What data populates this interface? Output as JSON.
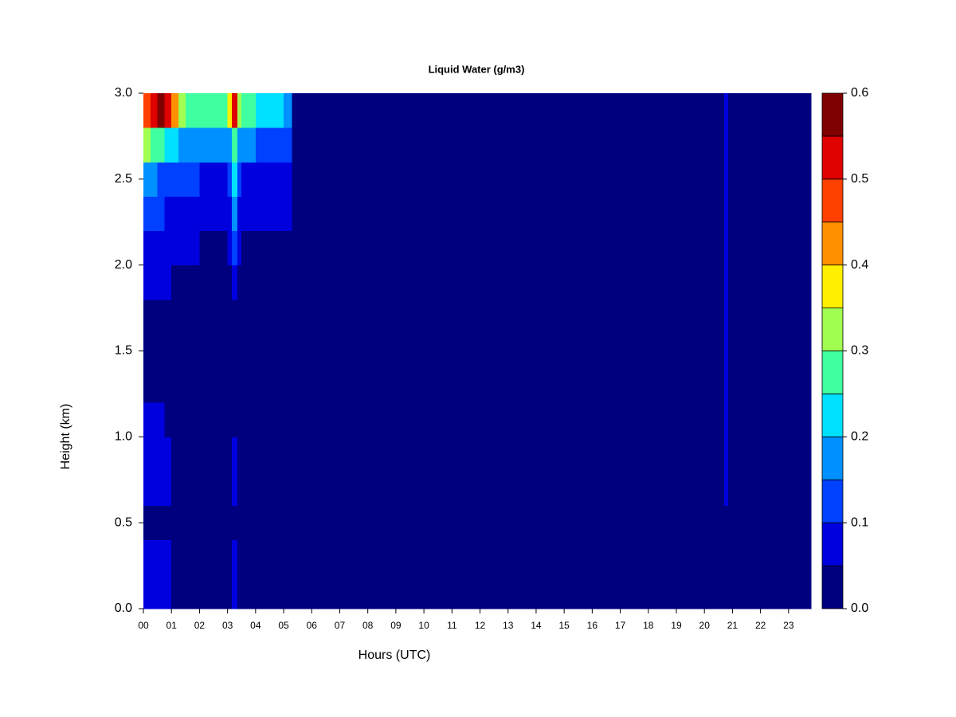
{
  "chart_data": {
    "type": "heatmap",
    "title": "Liquid Water (g/m3)",
    "xlabel": "Hours (UTC)",
    "ylabel": "Height (km)",
    "x_edges": [
      0,
      0.25,
      0.5,
      0.75,
      1,
      1.25,
      1.5,
      2,
      2.5,
      3,
      3.15,
      3.35,
      3.5,
      4,
      4.5,
      5,
      5.3,
      20.7,
      20.85,
      23.8
    ],
    "y_edges": [
      0,
      0.2,
      0.4,
      0.6,
      0.8,
      1.0,
      1.2,
      1.4,
      1.6,
      1.8,
      2.0,
      2.2,
      2.4,
      2.6,
      2.8,
      3.0
    ],
    "z": [
      [
        0.06,
        0.06,
        0.06,
        0.06,
        0.03,
        0.02,
        0.02,
        0.02,
        0.02,
        0.02,
        0.06,
        0.02,
        0.02,
        0.02,
        0.02,
        0.02,
        0.02,
        0.02,
        0.02
      ],
      [
        0.06,
        0.06,
        0.06,
        0.06,
        0.03,
        0.02,
        0.02,
        0.02,
        0.02,
        0.02,
        0.06,
        0.02,
        0.02,
        0.02,
        0.02,
        0.02,
        0.02,
        0.02,
        0.02
      ],
      [
        0.02,
        0.02,
        0.02,
        0.02,
        0.02,
        0.02,
        0.02,
        0.02,
        0.02,
        0.02,
        0.02,
        0.02,
        0.02,
        0.02,
        0.02,
        0.02,
        0.02,
        0.02,
        0.02
      ],
      [
        0.06,
        0.06,
        0.06,
        0.06,
        0.02,
        0.02,
        0.02,
        0.02,
        0.02,
        0.02,
        0.06,
        0.02,
        0.02,
        0.02,
        0.02,
        0.02,
        0.02,
        0.06,
        0.02
      ],
      [
        0.06,
        0.06,
        0.06,
        0.06,
        0.02,
        0.02,
        0.02,
        0.02,
        0.02,
        0.02,
        0.06,
        0.02,
        0.02,
        0.02,
        0.02,
        0.02,
        0.02,
        0.06,
        0.02
      ],
      [
        0.06,
        0.06,
        0.06,
        0.03,
        0.02,
        0.02,
        0.02,
        0.02,
        0.02,
        0.02,
        0.02,
        0.02,
        0.02,
        0.02,
        0.02,
        0.02,
        0.02,
        0.06,
        0.02
      ],
      [
        0.02,
        0.02,
        0.02,
        0.02,
        0.02,
        0.02,
        0.02,
        0.02,
        0.02,
        0.02,
        0.02,
        0.02,
        0.02,
        0.02,
        0.02,
        0.02,
        0.02,
        0.06,
        0.02
      ],
      [
        0.02,
        0.02,
        0.02,
        0.02,
        0.02,
        0.02,
        0.02,
        0.02,
        0.02,
        0.02,
        0.02,
        0.02,
        0.02,
        0.02,
        0.02,
        0.02,
        0.02,
        0.06,
        0.02
      ],
      [
        0.02,
        0.02,
        0.02,
        0.02,
        0.02,
        0.02,
        0.02,
        0.02,
        0.02,
        0.02,
        0.02,
        0.02,
        0.02,
        0.02,
        0.02,
        0.02,
        0.02,
        0.07,
        0.02
      ],
      [
        0.06,
        0.07,
        0.07,
        0.06,
        0.03,
        0.02,
        0.02,
        0.02,
        0.02,
        0.02,
        0.06,
        0.02,
        0.02,
        0.02,
        0.02,
        0.02,
        0.02,
        0.06,
        0.02
      ],
      [
        0.08,
        0.09,
        0.08,
        0.07,
        0.06,
        0.06,
        0.06,
        0.03,
        0.03,
        0.06,
        0.12,
        0.06,
        0.03,
        0.03,
        0.03,
        0.03,
        0.02,
        0.06,
        0.02
      ],
      [
        0.1,
        0.11,
        0.1,
        0.09,
        0.08,
        0.07,
        0.07,
        0.06,
        0.06,
        0.08,
        0.16,
        0.08,
        0.06,
        0.06,
        0.06,
        0.06,
        0.02,
        0.06,
        0.02
      ],
      [
        0.17,
        0.16,
        0.14,
        0.13,
        0.12,
        0.11,
        0.1,
        0.09,
        0.08,
        0.11,
        0.2,
        0.11,
        0.09,
        0.08,
        0.07,
        0.06,
        0.02,
        0.06,
        0.02
      ],
      [
        0.3,
        0.27,
        0.25,
        0.23,
        0.2,
        0.19,
        0.17,
        0.16,
        0.15,
        0.19,
        0.26,
        0.18,
        0.15,
        0.14,
        0.13,
        0.1,
        0.02,
        0.06,
        0.02
      ],
      [
        0.48,
        0.52,
        0.56,
        0.52,
        0.4,
        0.33,
        0.28,
        0.25,
        0.26,
        0.35,
        0.5,
        0.33,
        0.26,
        0.24,
        0.22,
        0.18,
        0.02,
        0.06,
        0.02
      ]
    ],
    "xlim": [
      0,
      23.8
    ],
    "ylim": [
      0,
      3
    ],
    "xticks": [
      {
        "value": 0,
        "label": "00"
      },
      {
        "value": 1,
        "label": "01"
      },
      {
        "value": 2,
        "label": "02"
      },
      {
        "value": 3,
        "label": "03"
      },
      {
        "value": 4,
        "label": "04"
      },
      {
        "value": 5,
        "label": "05"
      },
      {
        "value": 6,
        "label": "06"
      },
      {
        "value": 7,
        "label": "07"
      },
      {
        "value": 8,
        "label": "08"
      },
      {
        "value": 9,
        "label": "09"
      },
      {
        "value": 10,
        "label": "10"
      },
      {
        "value": 11,
        "label": "11"
      },
      {
        "value": 12,
        "label": "12"
      },
      {
        "value": 13,
        "label": "13"
      },
      {
        "value": 14,
        "label": "14"
      },
      {
        "value": 15,
        "label": "15"
      },
      {
        "value": 16,
        "label": "16"
      },
      {
        "value": 17,
        "label": "17"
      },
      {
        "value": 18,
        "label": "18"
      },
      {
        "value": 19,
        "label": "19"
      },
      {
        "value": 20,
        "label": "20"
      },
      {
        "value": 21,
        "label": "21"
      },
      {
        "value": 22,
        "label": "22"
      },
      {
        "value": 23,
        "label": "23"
      }
    ],
    "yticks": [
      {
        "value": 0,
        "label": "0.0"
      },
      {
        "value": 0.5,
        "label": "0.5"
      },
      {
        "value": 1,
        "label": "1.0"
      },
      {
        "value": 1.5,
        "label": "1.5"
      },
      {
        "value": 2,
        "label": "2.0"
      },
      {
        "value": 2.5,
        "label": "2.5"
      },
      {
        "value": 3,
        "label": "3.0"
      }
    ],
    "levels": [
      0,
      0.05,
      0.1,
      0.15,
      0.2,
      0.25,
      0.3,
      0.35,
      0.4,
      0.45,
      0.5,
      0.55,
      0.6
    ],
    "colors": [
      "#00007f",
      "#0000df",
      "#0040ff",
      "#0090ff",
      "#00e0ff",
      "#40ffa0",
      "#a0ff50",
      "#fff000",
      "#ff9000",
      "#ff4000",
      "#df0000",
      "#7f0000"
    ],
    "cbar_ticks": [
      {
        "value": 0,
        "label": "0.0"
      },
      {
        "value": 0.1,
        "label": "0.1"
      },
      {
        "value": 0.2,
        "label": "0.2"
      },
      {
        "value": 0.3,
        "label": "0.3"
      },
      {
        "value": 0.4,
        "label": "0.4"
      },
      {
        "value": 0.5,
        "label": "0.5"
      },
      {
        "value": 0.6,
        "label": "0.6"
      }
    ]
  }
}
